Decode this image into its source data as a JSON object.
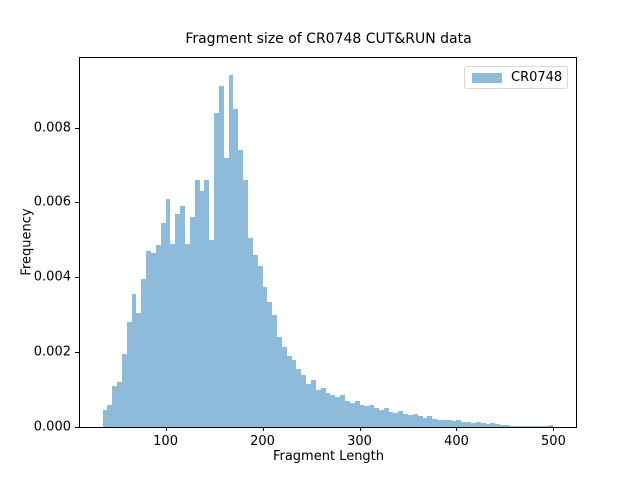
{
  "figure": {
    "title": "Fragment size of CR0748 CUT&RUN data",
    "xlabel": "Fragment Length",
    "ylabel": "Frequency",
    "background_color": "#ffffff",
    "spine_color": "#000000"
  },
  "legend": {
    "label": "CR0748",
    "swatch_color": "#8fbbda",
    "border_color": "#d9d9d9",
    "position": "upper right"
  },
  "chart_data": {
    "type": "bar",
    "subtype": "histogram",
    "title": "Fragment size of CR0748 CUT&RUN data",
    "xlabel": "Fragment Length",
    "ylabel": "Frequency",
    "grid": false,
    "legend_position": "upper right",
    "series": [
      {
        "name": "CR0748",
        "color": "#8fbbda",
        "bin_start": 35,
        "bin_width": 5,
        "values": [
          0.00045,
          0.0006,
          0.0011,
          0.0012,
          0.00195,
          0.0028,
          0.00355,
          0.00305,
          0.00395,
          0.0047,
          0.00465,
          0.00485,
          0.00545,
          0.0061,
          0.0049,
          0.0057,
          0.0059,
          0.0049,
          0.0056,
          0.0066,
          0.0063,
          0.0066,
          0.005,
          0.0084,
          0.0091,
          0.0072,
          0.0094,
          0.0085,
          0.0074,
          0.0066,
          0.00505,
          0.0046,
          0.0043,
          0.00375,
          0.00335,
          0.003,
          0.0024,
          0.00215,
          0.0019,
          0.0018,
          0.00155,
          0.0014,
          0.00115,
          0.00125,
          0.001,
          0.00105,
          0.0009,
          0.00085,
          0.0008,
          0.00085,
          0.0007,
          0.00065,
          0.0007,
          0.0006,
          0.00055,
          0.0006,
          0.0005,
          0.00045,
          0.0005,
          0.0004,
          0.00038,
          0.00042,
          0.00035,
          0.00032,
          0.00035,
          0.0003,
          0.00024,
          0.0003,
          0.00022,
          0.0002,
          0.00018,
          0.0002,
          0.00015,
          0.00018,
          0.00014,
          0.00014,
          0.00012,
          0.00013,
          0.0001,
          8e-05,
          0.00012,
          8e-05,
          6e-05,
          5e-05,
          4e-05,
          4e-05,
          3e-05,
          3e-05,
          3e-05,
          3e-05,
          3e-05,
          3e-05,
          6e-05
        ]
      }
    ],
    "xlim": [
      11.75,
      523.25
    ],
    "ylim": [
      0,
      0.00986
    ],
    "xticks": [
      {
        "value": 100,
        "label": "100"
      },
      {
        "value": 200,
        "label": "200"
      },
      {
        "value": 300,
        "label": "300"
      },
      {
        "value": 400,
        "label": "400"
      },
      {
        "value": 500,
        "label": "500"
      }
    ],
    "yticks": [
      {
        "value": 0.0,
        "label": "0.000"
      },
      {
        "value": 0.002,
        "label": "0.002"
      },
      {
        "value": 0.004,
        "label": "0.004"
      },
      {
        "value": 0.006,
        "label": "0.006"
      },
      {
        "value": 0.008,
        "label": "0.008"
      }
    ]
  }
}
